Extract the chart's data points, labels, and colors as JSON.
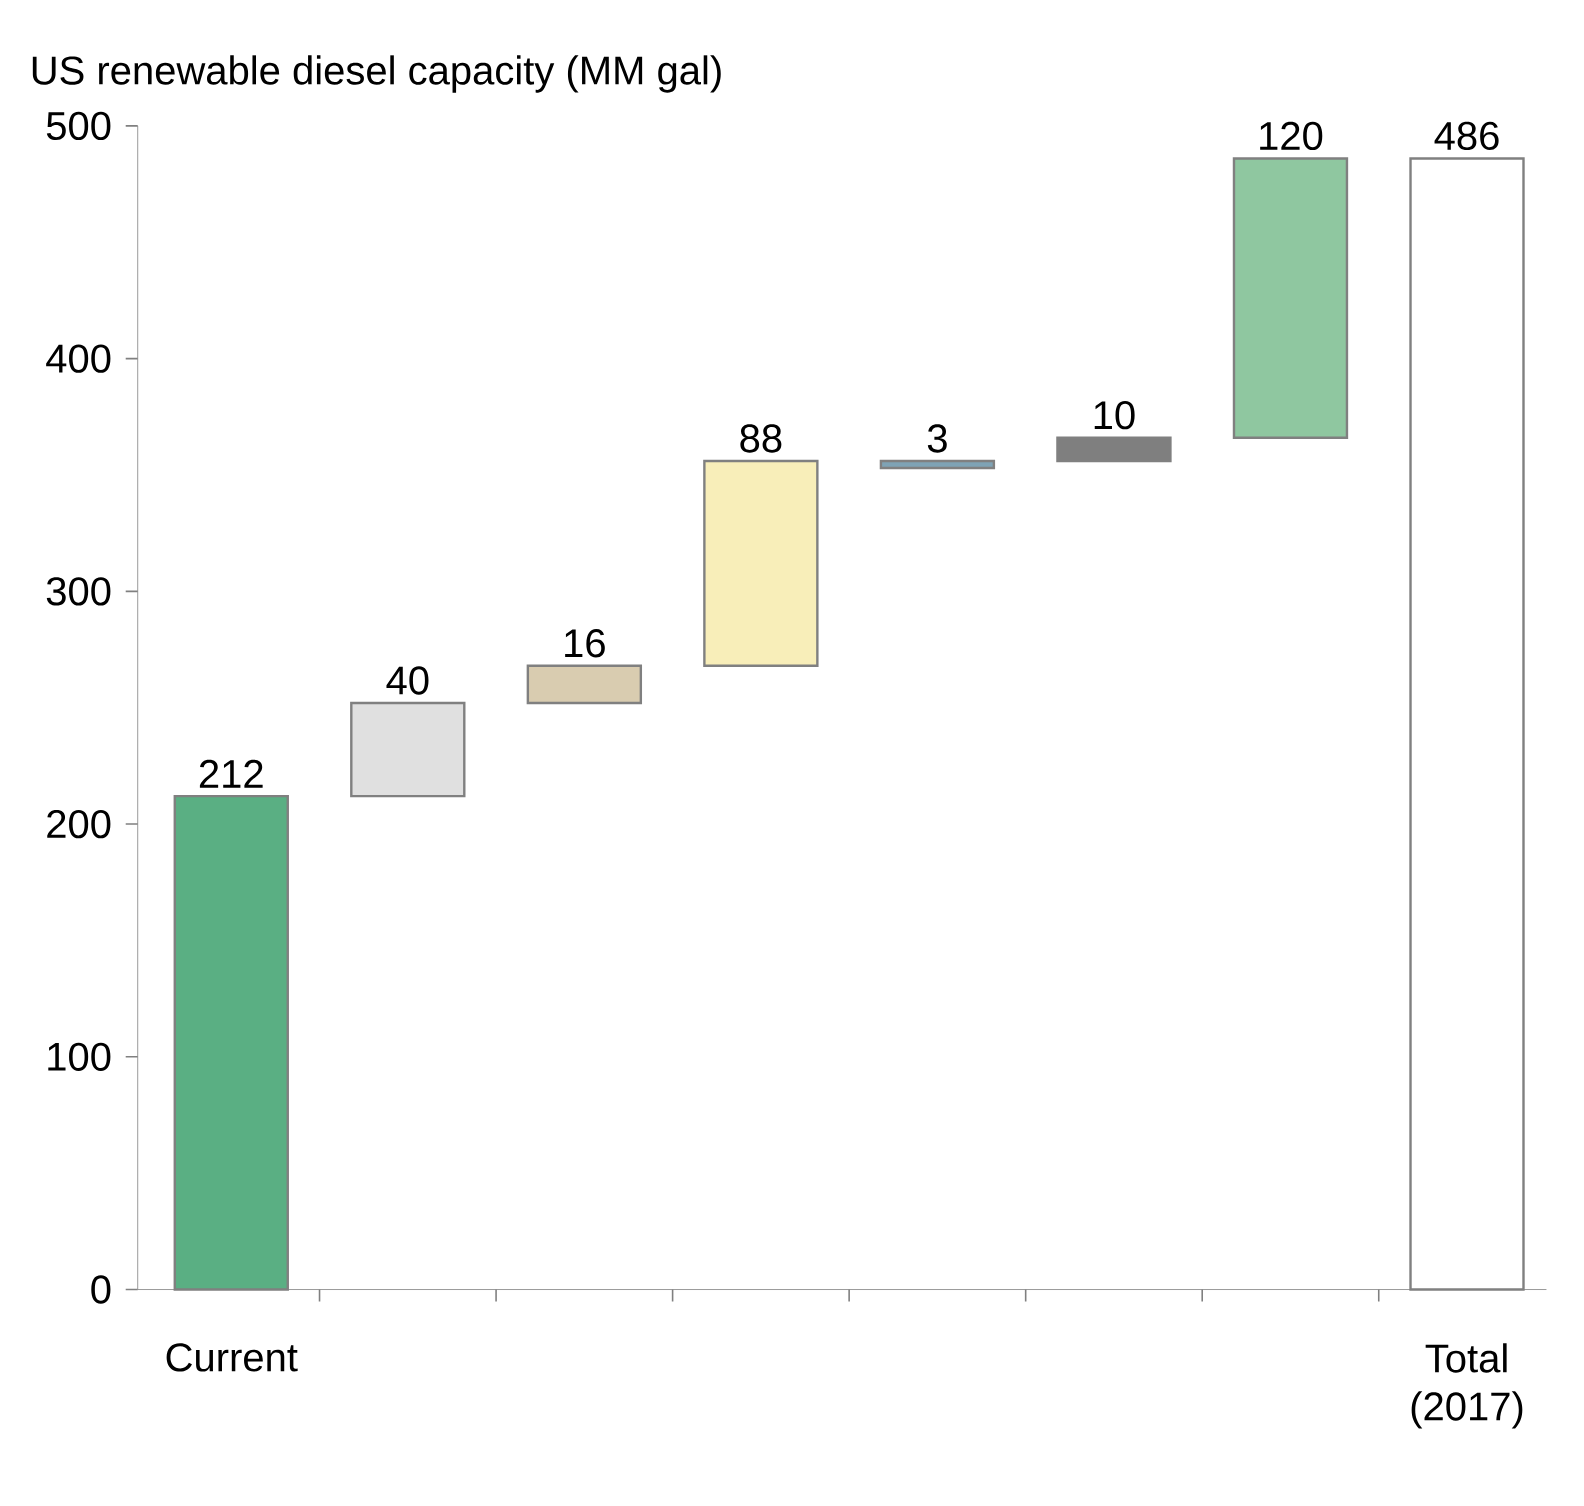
{
  "chart_data": {
    "type": "bar",
    "title": "US renewable diesel capacity (MM gal)",
    "categories": [
      "Current",
      null,
      null,
      null,
      null,
      null,
      null,
      "Total (2017)"
    ],
    "values": [
      212,
      40,
      16,
      88,
      3,
      10,
      120,
      486
    ],
    "base": [
      0,
      212,
      252,
      268,
      353,
      356,
      366,
      0
    ],
    "colors": [
      "#5aaf83",
      "#e0e0e0",
      "#d9ccb0",
      "#f8eeb9",
      "#7fa3b5",
      "#7f7f7f",
      "#8fc7a0",
      "#ffffff"
    ],
    "ylim": [
      0,
      500
    ],
    "yticks": [
      0,
      100,
      200,
      300,
      400,
      500
    ],
    "data_labels": true
  }
}
